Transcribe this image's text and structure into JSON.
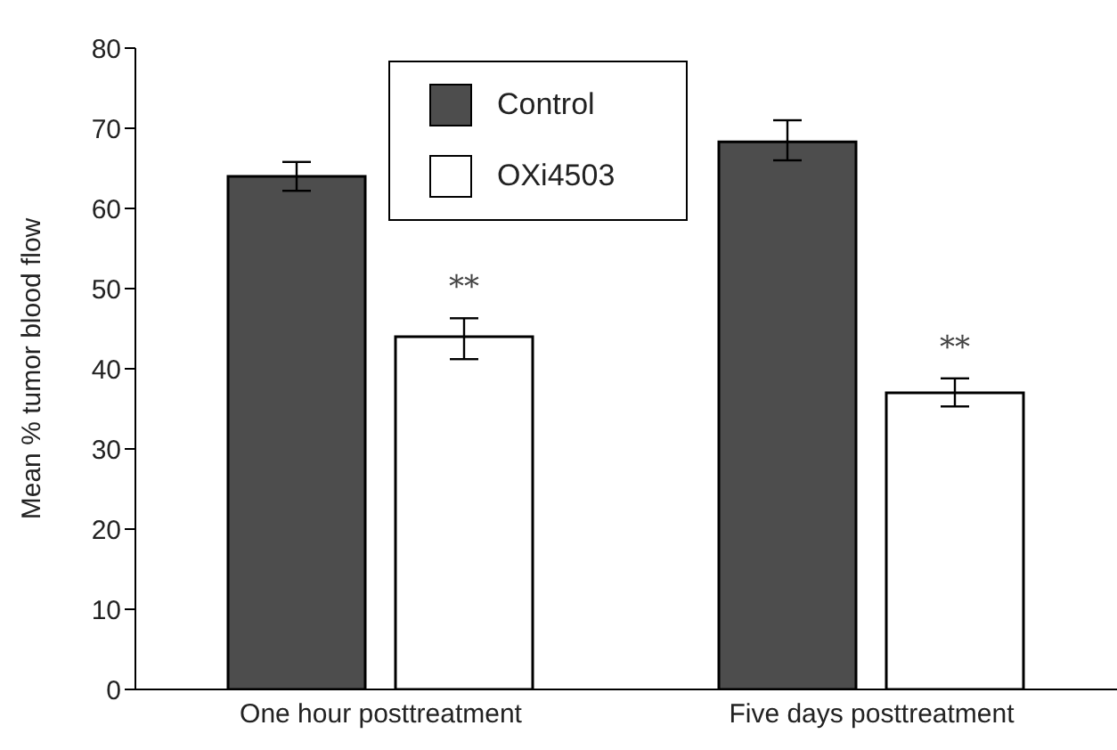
{
  "chart_data": {
    "type": "bar",
    "ylabel": "Mean % tumor blood flow",
    "categories": [
      "One hour posttreatment",
      "Five days posttreatment"
    ],
    "series": [
      {
        "name": "Control",
        "color": "#4d4d4d",
        "values": [
          64,
          68.3
        ],
        "errors": [
          [
            62.2,
            65.8
          ],
          [
            66,
            71
          ]
        ]
      },
      {
        "name": "OXi4503",
        "color": "#ffffff",
        "values": [
          44,
          37
        ],
        "errors": [
          [
            41.2,
            46.3
          ],
          [
            35.3,
            38.8
          ]
        ]
      }
    ],
    "ylim": [
      0,
      80
    ],
    "yticks": [
      0,
      10,
      20,
      30,
      40,
      50,
      60,
      70,
      80
    ],
    "grid": false,
    "legend": "top",
    "annotations": [
      "**",
      "**"
    ]
  }
}
